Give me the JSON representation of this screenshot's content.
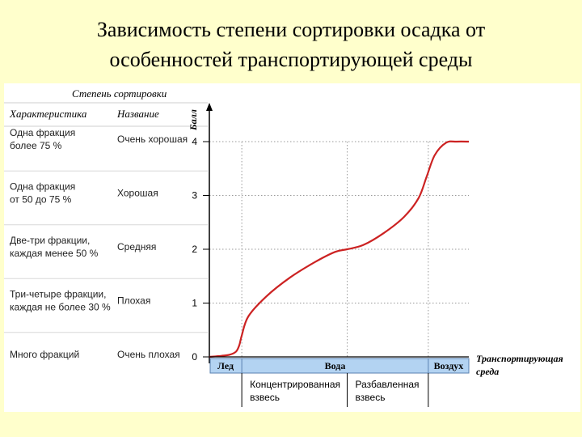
{
  "slide": {
    "title_line1": "Зависимость степени сортировки осадка от",
    "title_line2": "особенностей транспортирующей среды"
  },
  "colors": {
    "background": "#ffffcc",
    "curve": "#cc2222",
    "bar": "#b3d3f2",
    "grid": "#999999"
  },
  "table": {
    "title": "Степень сортировки",
    "col1_header": "Характеристика",
    "col2_header": "Название",
    "rows": [
      {
        "characteristic": [
          "Одна фракция",
          "более 75 %"
        ],
        "name": "Очень хорошая"
      },
      {
        "characteristic": [
          "Одна фракция",
          "от 50 до 75 %"
        ],
        "name": "Хорошая"
      },
      {
        "characteristic": [
          "Две-три фракции,",
          "каждая менее 50 %"
        ],
        "name": "Средняя"
      },
      {
        "characteristic": [
          "Три-четыре фракции,",
          "каждая не более 30 %"
        ],
        "name": "Плохая"
      },
      {
        "characteristic": [
          "Много фракций"
        ],
        "name": "Очень плохая"
      }
    ]
  },
  "chart_data": {
    "type": "line",
    "ylabel": "Балл",
    "xlabel": [
      "Транспортирующая",
      "среда"
    ],
    "yticks": [
      0,
      1,
      2,
      3,
      4
    ],
    "ylim": [
      0,
      4.5
    ],
    "xlim": [
      0,
      320
    ],
    "grid_x": [
      40,
      170,
      270
    ],
    "x_categories": [
      {
        "label": "Лед",
        "from": 0,
        "to": 40
      },
      {
        "label": "Вода",
        "from": 40,
        "to": 270
      },
      {
        "label": "Воздух",
        "from": 270,
        "to": 320
      }
    ],
    "sub_categories": [
      {
        "label": [
          "Концентрированная",
          "взвесь"
        ],
        "from": 40,
        "to": 170
      },
      {
        "label": [
          "Разбавленная",
          "взвесь"
        ],
        "from": 170,
        "to": 270
      }
    ],
    "series": [
      {
        "x": [
          0,
          15,
          25,
          33,
          37,
          40,
          48,
          70,
          100,
          130,
          155,
          170,
          190,
          215,
          240,
          258,
          268,
          278,
          292,
          305,
          320
        ],
        "y": [
          0.0,
          0.02,
          0.04,
          0.1,
          0.22,
          0.4,
          0.75,
          1.12,
          1.48,
          1.76,
          1.95,
          2.0,
          2.08,
          2.3,
          2.6,
          2.95,
          3.35,
          3.75,
          3.98,
          4.0,
          4.0
        ]
      }
    ]
  }
}
